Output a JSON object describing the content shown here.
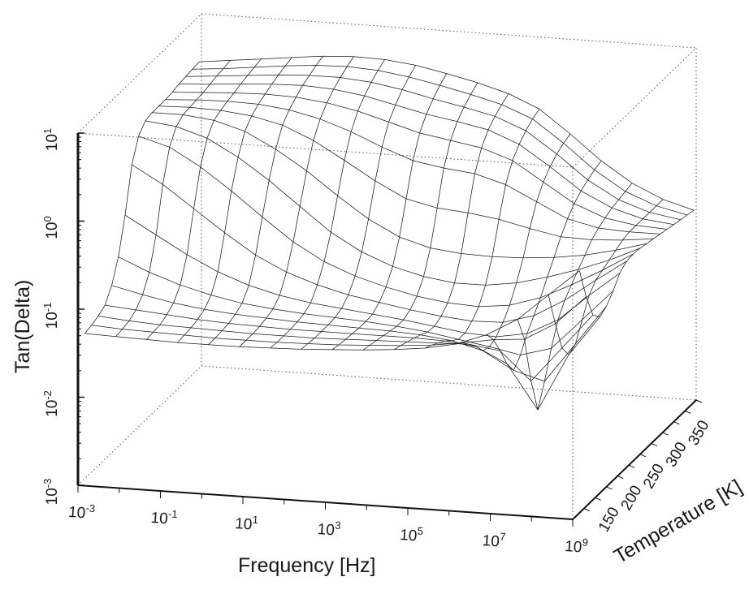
{
  "chart_data": {
    "type": "surface",
    "zlabel": "Tan(Delta)",
    "xlabel": "Frequency [Hz]",
    "ylabel": "Temperature [K]",
    "z_scale": "log",
    "x_scale": "log",
    "xlim_log10": [
      -3,
      9
    ],
    "ylim": [
      100,
      375
    ],
    "zlim_log10": [
      -3,
      1
    ],
    "x_ticks": [
      {
        "base": "10",
        "exp": "-3",
        "log10": -3
      },
      {
        "base": "10",
        "exp": "-1",
        "log10": -1
      },
      {
        "base": "10",
        "exp": "1",
        "log10": 1
      },
      {
        "base": "10",
        "exp": "3",
        "log10": 3
      },
      {
        "base": "10",
        "exp": "5",
        "log10": 5
      },
      {
        "base": "10",
        "exp": "7",
        "log10": 7
      },
      {
        "base": "10",
        "exp": "9",
        "log10": 9
      }
    ],
    "y_ticks": [
      {
        "label": "150",
        "value": 150
      },
      {
        "label": "200",
        "value": 200
      },
      {
        "label": "250",
        "value": 250
      },
      {
        "label": "300",
        "value": 300
      },
      {
        "label": "350",
        "value": 350
      }
    ],
    "z_ticks": [
      {
        "base": "10",
        "exp": "-3",
        "log10": -3
      },
      {
        "base": "10",
        "exp": "-2",
        "log10": -2
      },
      {
        "base": "10",
        "exp": "-1",
        "log10": -1
      },
      {
        "base": "10",
        "exp": "0",
        "log10": 0
      },
      {
        "base": "10",
        "exp": "1",
        "log10": 1
      }
    ],
    "surface": {
      "temperature_K": [
        115,
        130,
        145,
        160,
        175,
        190,
        205,
        220,
        235,
        250,
        265,
        280,
        295,
        310,
        325,
        340,
        355,
        370
      ],
      "log10_frequency_Hz": [
        -3,
        -2.25,
        -1.5,
        -0.75,
        0,
        0.75,
        1.5,
        2.25,
        3,
        3.75,
        4.5,
        5.25,
        6,
        6.75,
        7.5,
        8.25,
        9
      ],
      "log10_tan_delta": [
        [
          -1.35,
          -1.36,
          -1.37,
          -1.38,
          -1.38,
          -1.38,
          -1.37,
          -1.36,
          -1.34,
          -1.32,
          -1.29,
          -1.25,
          -1.18,
          -1.05,
          -0.85,
          -0.55,
          -0.25
        ],
        [
          -1.33,
          -1.35,
          -1.36,
          -1.37,
          -1.38,
          -1.38,
          -1.38,
          -1.37,
          -1.36,
          -1.34,
          -1.32,
          -1.29,
          -1.24,
          -1.18,
          -1.15,
          -0.95,
          -0.62
        ],
        [
          -1.3,
          -1.33,
          -1.35,
          -1.36,
          -1.37,
          -1.38,
          -1.38,
          -1.38,
          -1.37,
          -1.36,
          -1.35,
          -1.34,
          -1.33,
          -1.38,
          -1.7,
          -1.3,
          -0.9
        ],
        [
          -1.25,
          -1.28,
          -1.31,
          -1.34,
          -1.36,
          -1.37,
          -1.38,
          -1.38,
          -1.38,
          -1.38,
          -1.38,
          -1.39,
          -1.43,
          -1.6,
          -2.1,
          -1.45,
          -1.0
        ],
        [
          -1.1,
          -1.18,
          -1.25,
          -1.3,
          -1.33,
          -1.35,
          -1.37,
          -1.38,
          -1.39,
          -1.4,
          -1.42,
          -1.46,
          -1.55,
          -1.75,
          -1.85,
          -1.4,
          -0.95
        ],
        [
          -0.85,
          -1.0,
          -1.12,
          -1.21,
          -1.28,
          -1.32,
          -1.35,
          -1.37,
          -1.39,
          -1.42,
          -1.46,
          -1.52,
          -1.58,
          -1.65,
          -1.55,
          -1.2,
          -0.85
        ],
        [
          -0.45,
          -0.65,
          -0.85,
          -1.02,
          -1.15,
          -1.24,
          -1.3,
          -1.34,
          -1.38,
          -1.42,
          -1.47,
          -1.52,
          -1.54,
          -1.48,
          -1.3,
          -1.0,
          -0.72
        ],
        [
          0.05,
          -0.15,
          -0.4,
          -0.65,
          -0.88,
          -1.05,
          -1.17,
          -1.26,
          -1.32,
          -1.38,
          -1.43,
          -1.46,
          -1.45,
          -1.35,
          -1.15,
          -0.9,
          -0.66
        ],
        [
          0.3,
          0.2,
          0.0,
          -0.25,
          -0.52,
          -0.78,
          -0.98,
          -1.12,
          -1.22,
          -1.3,
          -1.35,
          -1.37,
          -1.33,
          -1.22,
          -1.05,
          -0.86,
          -0.65
        ],
        [
          0.4,
          0.36,
          0.25,
          0.06,
          -0.18,
          -0.45,
          -0.72,
          -0.92,
          -1.06,
          -1.15,
          -1.2,
          -1.2,
          -1.15,
          -1.06,
          -0.95,
          -0.82,
          -0.66
        ],
        [
          0.42,
          0.42,
          0.38,
          0.28,
          0.1,
          -0.12,
          -0.38,
          -0.62,
          -0.8,
          -0.9,
          -0.94,
          -0.95,
          -0.94,
          -0.91,
          -0.86,
          -0.78,
          -0.68
        ],
        [
          0.42,
          0.43,
          0.42,
          0.38,
          0.3,
          0.15,
          -0.05,
          -0.26,
          -0.44,
          -0.52,
          -0.55,
          -0.6,
          -0.68,
          -0.75,
          -0.76,
          -0.74,
          -0.7
        ],
        [
          0.42,
          0.44,
          0.45,
          0.44,
          0.4,
          0.32,
          0.2,
          0.05,
          -0.08,
          -0.14,
          -0.18,
          -0.28,
          -0.45,
          -0.62,
          -0.7,
          -0.72,
          -0.72
        ],
        [
          0.43,
          0.45,
          0.47,
          0.48,
          0.47,
          0.43,
          0.36,
          0.26,
          0.16,
          0.1,
          0.04,
          -0.08,
          -0.3,
          -0.52,
          -0.66,
          -0.72,
          -0.74
        ],
        [
          0.45,
          0.47,
          0.5,
          0.52,
          0.53,
          0.51,
          0.46,
          0.38,
          0.3,
          0.24,
          0.17,
          0.03,
          -0.2,
          -0.45,
          -0.62,
          -0.72,
          -0.76
        ],
        [
          0.46,
          0.49,
          0.52,
          0.55,
          0.57,
          0.57,
          0.54,
          0.48,
          0.4,
          0.33,
          0.25,
          0.11,
          -0.13,
          -0.4,
          -0.6,
          -0.72,
          -0.78
        ],
        [
          0.47,
          0.5,
          0.54,
          0.58,
          0.61,
          0.62,
          0.6,
          0.55,
          0.48,
          0.4,
          0.31,
          0.17,
          -0.08,
          -0.36,
          -0.58,
          -0.72,
          -0.8
        ],
        [
          0.48,
          0.52,
          0.56,
          0.6,
          0.64,
          0.66,
          0.65,
          0.61,
          0.54,
          0.46,
          0.36,
          0.21,
          -0.05,
          -0.33,
          -0.56,
          -0.72,
          -0.82
        ]
      ]
    }
  }
}
